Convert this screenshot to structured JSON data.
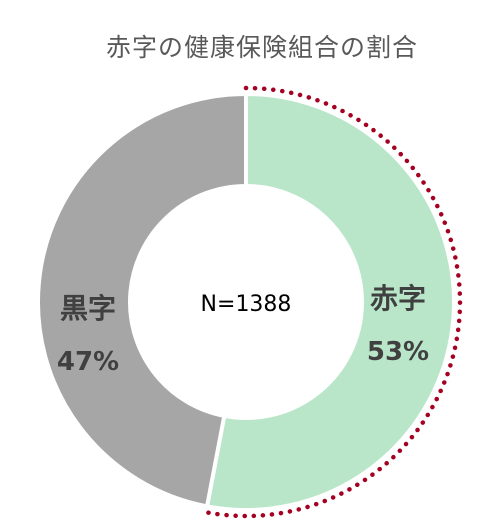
{
  "chart_data": {
    "type": "pie",
    "title": "赤字の健康保険組合の割合",
    "center_label": "N=1388",
    "slices": [
      {
        "label": "赤字",
        "value": 53,
        "value_label": "53%",
        "color": "#b9e6c9",
        "outline": "#a50021"
      },
      {
        "label": "黒字",
        "value": 47,
        "value_label": "47%",
        "color": "#a6a6a6"
      }
    ],
    "start_angle": "12 o'clock",
    "direction": "clockwise"
  }
}
